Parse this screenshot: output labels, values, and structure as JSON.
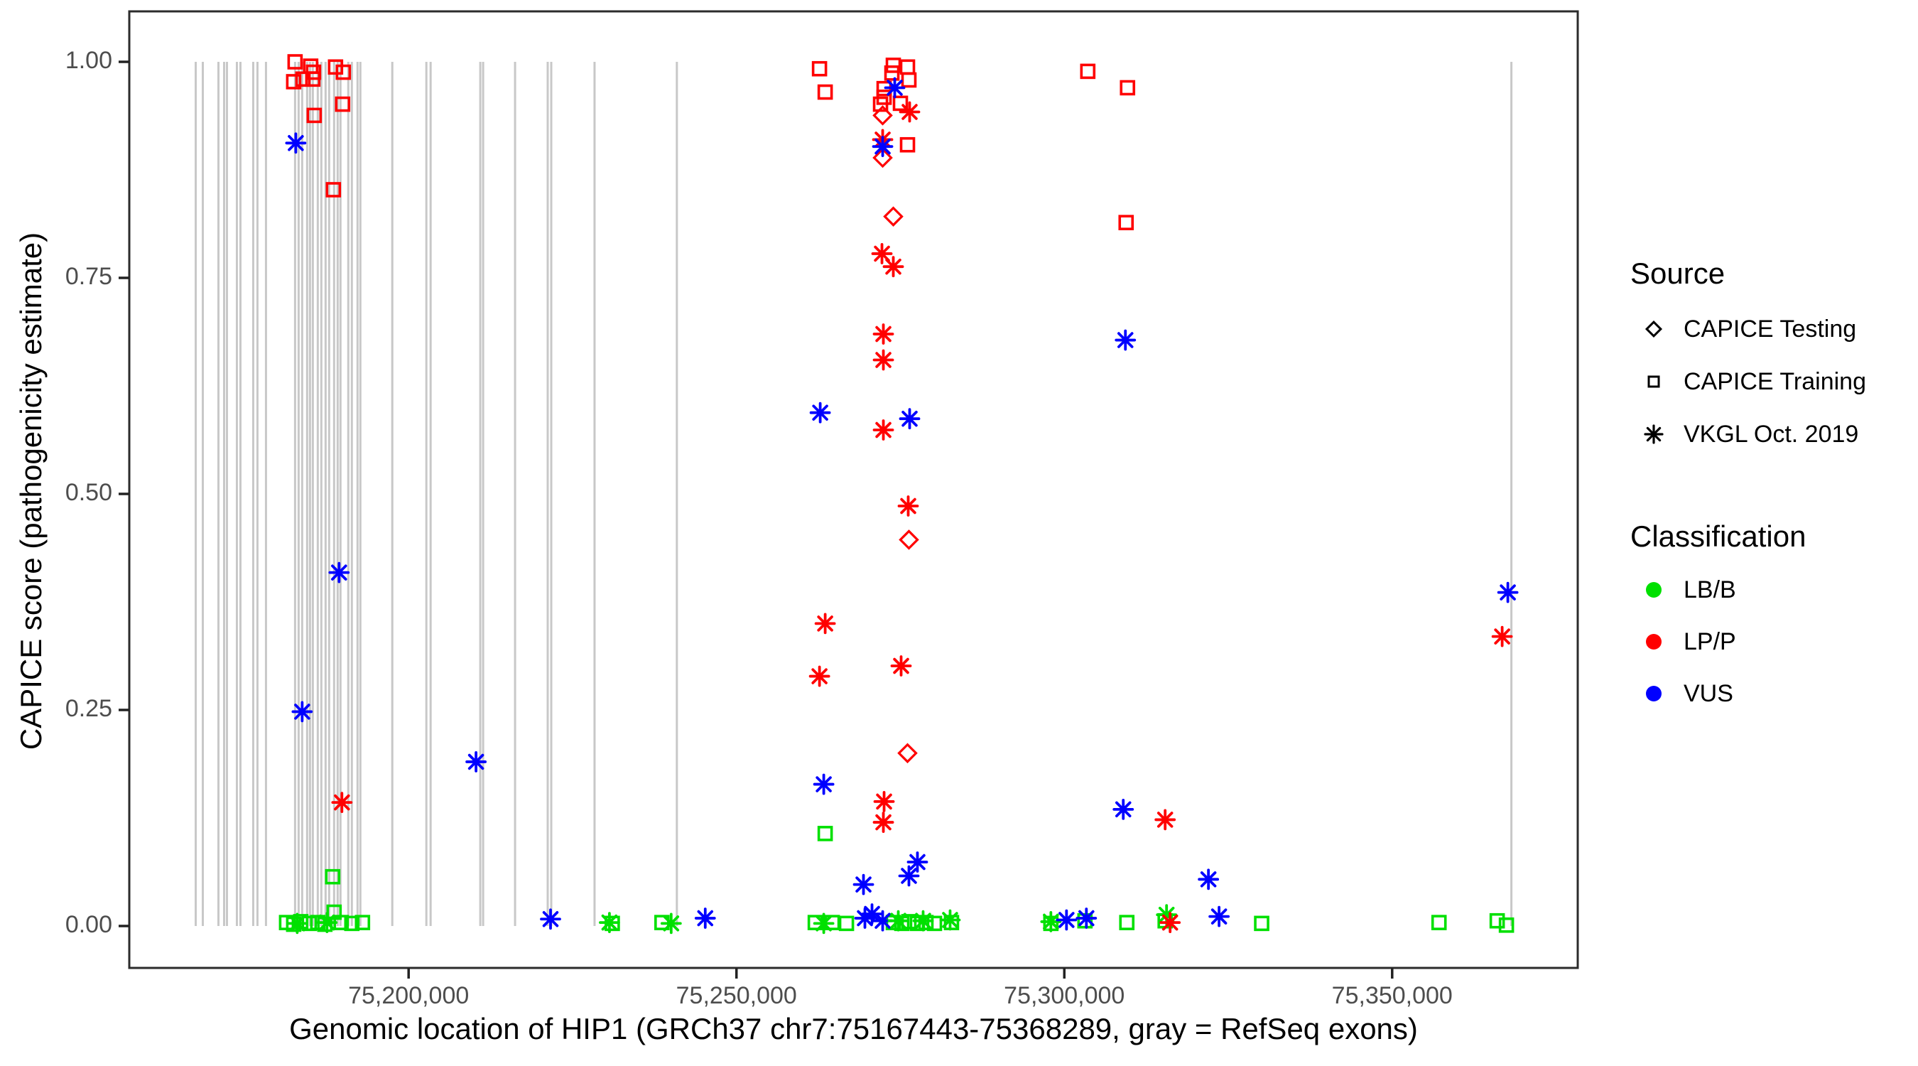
{
  "axes": {
    "x": {
      "title": "Genomic location of HIP1 (GRCh37 chr7:75167443-75368289, gray = RefSeq exons)",
      "range": [
        75157400,
        75378300
      ],
      "ticks": [
        {
          "label": "75,200,000",
          "value": 75200000
        },
        {
          "label": "75,250,000",
          "value": 75250000
        },
        {
          "label": "75,300,000",
          "value": 75300000
        },
        {
          "label": "75,350,000",
          "value": 75350000
        }
      ]
    },
    "y": {
      "title": "CAPICE score (pathogenicity estimate)",
      "range": [
        0,
        1
      ],
      "ticks": [
        {
          "label": "1.00",
          "value": 1.0
        },
        {
          "label": "0.75",
          "value": 0.75
        },
        {
          "label": "0.50",
          "value": 0.5
        },
        {
          "label": "0.25",
          "value": 0.25
        },
        {
          "label": "0.00",
          "value": 0.0
        }
      ]
    }
  },
  "legend": {
    "source": {
      "title": "Source",
      "items": [
        {
          "label": "CAPICE Testing",
          "code": "testing",
          "shape": "diamond"
        },
        {
          "label": "CAPICE Training",
          "code": "training",
          "shape": "square"
        },
        {
          "label": "VKGL Oct. 2019",
          "code": "vkgl",
          "shape": "asterisk"
        }
      ]
    },
    "classification": {
      "title": "Classification",
      "items": [
        {
          "label": "LB/B",
          "code": "LB/B",
          "color": "#00E000"
        },
        {
          "label": "LP/P",
          "code": "LP/P",
          "color": "#FF0000"
        },
        {
          "label": "VUS",
          "code": "VUS",
          "color": "#0000FF"
        }
      ]
    }
  },
  "colors": {
    "LB/B": "#00E000",
    "LP/P": "#FF0000",
    "VUS": "#0000FF",
    "exon": "#C8C8C8",
    "panel_border": "#2B2B2B",
    "tick_mark": "#222222",
    "tick_label": "#4D4D4D"
  },
  "chart_data": {
    "type": "scatter",
    "x_unit": "genomic position (bp, GRCh37 chr7)",
    "y_unit": "CAPICE score",
    "grid": false,
    "legend_position": "right",
    "exons_bp": [
      75167532,
      75168615,
      75170996,
      75171861,
      75172294,
      75173810,
      75174351,
      75176299,
      75176948,
      75178247,
      75182684,
      75183225,
      75183766,
      75184524,
      75184957,
      75185390,
      75186147,
      75186688,
      75187338,
      75187879,
      75188636,
      75189177,
      75189610,
      75190801,
      75191342,
      75192208,
      75192641,
      75197511,
      75202706,
      75203355,
      75210931,
      75211364,
      75216234,
      75221212,
      75221753,
      75228355,
      75240909,
      75368182
    ],
    "points_format": [
      "bp",
      "score",
      "source",
      "classification"
    ],
    "points": [
      [
        75182684,
        1.0,
        "training",
        "LP/P"
      ],
      [
        75185065,
        0.995,
        "training",
        "LP/P"
      ],
      [
        75185498,
        0.988,
        "training",
        "LP/P"
      ],
      [
        75183874,
        0.98,
        "training",
        "LP/P"
      ],
      [
        75182468,
        0.977,
        "training",
        "LP/P"
      ],
      [
        75185390,
        0.98,
        "training",
        "LP/P"
      ],
      [
        75188853,
        0.994,
        "training",
        "LP/P"
      ],
      [
        75190043,
        0.988,
        "training",
        "LP/P"
      ],
      [
        75189935,
        0.951,
        "training",
        "LP/P"
      ],
      [
        75185606,
        0.938,
        "training",
        "LP/P"
      ],
      [
        75188528,
        0.852,
        "training",
        "LP/P"
      ],
      [
        75182792,
        0.906,
        "vkgl",
        "VUS"
      ],
      [
        75189394,
        0.409,
        "vkgl",
        "VUS"
      ],
      [
        75183766,
        0.248,
        "vkgl",
        "VUS"
      ],
      [
        75189827,
        0.143,
        "vkgl",
        "LP/P"
      ],
      [
        75188420,
        0.057,
        "training",
        "LB/B"
      ],
      [
        75188636,
        0.016,
        "training",
        "LB/B"
      ],
      [
        75181385,
        0.004,
        "training",
        "LB/B"
      ],
      [
        75182468,
        0.002,
        "training",
        "LB/B"
      ],
      [
        75183550,
        0.005,
        "training",
        "LB/B"
      ],
      [
        75184849,
        0.003,
        "training",
        "LB/B"
      ],
      [
        75186147,
        0.004,
        "training",
        "LB/B"
      ],
      [
        75187229,
        0.002,
        "training",
        "LB/B"
      ],
      [
        75189718,
        0.004,
        "training",
        "LB/B"
      ],
      [
        75191342,
        0.003,
        "training",
        "LB/B"
      ],
      [
        75192966,
        0.004,
        "training",
        "LB/B"
      ],
      [
        75183009,
        0.003,
        "vkgl",
        "LB/B"
      ],
      [
        75187554,
        0.004,
        "vkgl",
        "LB/B"
      ],
      [
        75210282,
        0.19,
        "vkgl",
        "VUS"
      ],
      [
        75221645,
        0.008,
        "vkgl",
        "VUS"
      ],
      [
        75230628,
        0.004,
        "vkgl",
        "LB/B"
      ],
      [
        75231061,
        0.003,
        "training",
        "LB/B"
      ],
      [
        75238636,
        0.004,
        "training",
        "LB/B"
      ],
      [
        75240043,
        0.003,
        "vkgl",
        "LB/B"
      ],
      [
        75245238,
        0.009,
        "vkgl",
        "VUS"
      ],
      [
        75262664,
        0.992,
        "training",
        "LP/P"
      ],
      [
        75263530,
        0.965,
        "training",
        "LP/P"
      ],
      [
        75273920,
        0.996,
        "training",
        "LP/P"
      ],
      [
        75276085,
        0.994,
        "training",
        "LP/P"
      ],
      [
        75273704,
        0.987,
        "training",
        "LP/P"
      ],
      [
        75276301,
        0.979,
        "training",
        "LP/P"
      ],
      [
        75272513,
        0.969,
        "training",
        "LP/P"
      ],
      [
        75272513,
        0.959,
        "training",
        "LP/P"
      ],
      [
        75271972,
        0.951,
        "training",
        "LP/P"
      ],
      [
        75275003,
        0.952,
        "training",
        "LP/P"
      ],
      [
        75276085,
        0.904,
        "training",
        "LP/P"
      ],
      [
        75274137,
        0.97,
        "vkgl",
        "VUS"
      ],
      [
        75276410,
        0.942,
        "vkgl",
        "LP/P"
      ],
      [
        75272297,
        0.938,
        "testing",
        "LP/P"
      ],
      [
        75272297,
        0.91,
        "vkgl",
        "LP/P"
      ],
      [
        75272297,
        0.902,
        "vkgl",
        "VUS"
      ],
      [
        75272297,
        0.889,
        "testing",
        "LP/P"
      ],
      [
        75273920,
        0.821,
        "testing",
        "LP/P"
      ],
      [
        75272188,
        0.778,
        "vkgl",
        "LP/P"
      ],
      [
        75273920,
        0.763,
        "vkgl",
        "LP/P"
      ],
      [
        75272405,
        0.685,
        "vkgl",
        "LP/P"
      ],
      [
        75272405,
        0.655,
        "vkgl",
        "LP/P"
      ],
      [
        75262771,
        0.594,
        "vkgl",
        "VUS"
      ],
      [
        75272405,
        0.574,
        "vkgl",
        "LP/P"
      ],
      [
        75276410,
        0.587,
        "vkgl",
        "VUS"
      ],
      [
        75276193,
        0.486,
        "vkgl",
        "LP/P"
      ],
      [
        75276301,
        0.447,
        "testing",
        "LP/P"
      ],
      [
        75263530,
        0.35,
        "vkgl",
        "LP/P"
      ],
      [
        75262664,
        0.289,
        "vkgl",
        "LP/P"
      ],
      [
        75275111,
        0.301,
        "vkgl",
        "LP/P"
      ],
      [
        75276085,
        0.2,
        "testing",
        "LP/P"
      ],
      [
        75263312,
        0.164,
        "vkgl",
        "VUS"
      ],
      [
        75272513,
        0.144,
        "vkgl",
        "LP/P"
      ],
      [
        75272405,
        0.12,
        "vkgl",
        "LP/P"
      ],
      [
        75263530,
        0.107,
        "training",
        "LB/B"
      ],
      [
        75277600,
        0.074,
        "vkgl",
        "VUS"
      ],
      [
        75276301,
        0.058,
        "vkgl",
        "VUS"
      ],
      [
        75269372,
        0.048,
        "vkgl",
        "VUS"
      ],
      [
        75262015,
        0.004,
        "training",
        "LB/B"
      ],
      [
        75263312,
        0.003,
        "vkgl",
        "LB/B"
      ],
      [
        75264612,
        0.004,
        "training",
        "LB/B"
      ],
      [
        75266777,
        0.003,
        "training",
        "LB/B"
      ],
      [
        75269588,
        0.009,
        "vkgl",
        "VUS"
      ],
      [
        75270671,
        0.014,
        "vkgl",
        "VUS"
      ],
      [
        75272297,
        0.006,
        "vkgl",
        "VUS"
      ],
      [
        75273920,
        0.004,
        "training",
        "LB/B"
      ],
      [
        75274678,
        0.006,
        "vkgl",
        "LB/B"
      ],
      [
        75275219,
        0.003,
        "training",
        "LB/B"
      ],
      [
        75276301,
        0.005,
        "training",
        "LB/B"
      ],
      [
        75277600,
        0.003,
        "training",
        "LB/B"
      ],
      [
        75278466,
        0.006,
        "vkgl",
        "LB/B"
      ],
      [
        75278899,
        0.004,
        "training",
        "LB/B"
      ],
      [
        75280198,
        0.003,
        "training",
        "LB/B"
      ],
      [
        75282579,
        0.007,
        "vkgl",
        "LB/B"
      ],
      [
        75282795,
        0.004,
        "training",
        "LB/B"
      ],
      [
        75303580,
        0.989,
        "training",
        "LP/P"
      ],
      [
        75309641,
        0.97,
        "training",
        "LP/P"
      ],
      [
        75309424,
        0.814,
        "training",
        "LP/P"
      ],
      [
        75309316,
        0.678,
        "vkgl",
        "VUS"
      ],
      [
        75308991,
        0.135,
        "vkgl",
        "VUS"
      ],
      [
        75315377,
        0.123,
        "vkgl",
        "LP/P"
      ],
      [
        75321979,
        0.054,
        "vkgl",
        "VUS"
      ],
      [
        75323602,
        0.011,
        "vkgl",
        "VUS"
      ],
      [
        75297951,
        0.005,
        "vkgl",
        "LB/B"
      ],
      [
        75297951,
        0.003,
        "training",
        "LB/B"
      ],
      [
        75300332,
        0.007,
        "vkgl",
        "VUS"
      ],
      [
        75303147,
        0.006,
        "training",
        "LB/B"
      ],
      [
        75303364,
        0.009,
        "vkgl",
        "VUS"
      ],
      [
        75309532,
        0.004,
        "training",
        "LB/B"
      ],
      [
        75315377,
        0.006,
        "training",
        "LB/B"
      ],
      [
        75315593,
        0.013,
        "vkgl",
        "LB/B"
      ],
      [
        75316134,
        0.004,
        "vkgl",
        "LP/P"
      ],
      [
        75330096,
        0.003,
        "training",
        "LB/B"
      ],
      [
        75357143,
        0.004,
        "training",
        "LB/B"
      ],
      [
        75366017,
        0.006,
        "training",
        "LB/B"
      ],
      [
        75367424,
        0.001,
        "training",
        "LB/B"
      ],
      [
        75367641,
        0.386,
        "vkgl",
        "VUS"
      ],
      [
        75366775,
        0.335,
        "vkgl",
        "LP/P"
      ]
    ]
  }
}
